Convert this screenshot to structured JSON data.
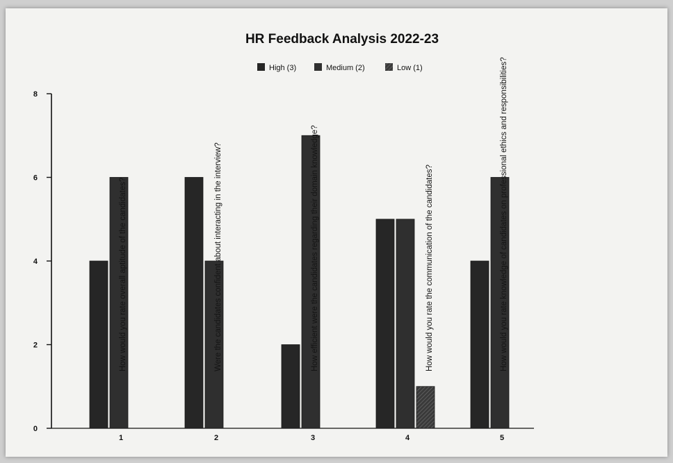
{
  "chart_data": {
    "type": "bar",
    "title": "HR Feedback Analysis 2022-23",
    "legend_placement": "top-center",
    "legend": [
      {
        "label": "High (3)",
        "color": "#262626"
      },
      {
        "label": "Medium (2)",
        "color": "#303030"
      },
      {
        "label": "Low (1)",
        "color": "#3a3a3a"
      }
    ],
    "categories": [
      "1",
      "2",
      "3",
      "4",
      "5"
    ],
    "series": [
      {
        "name": "High (3)",
        "values": [
          4,
          6,
          2,
          5,
          4
        ]
      },
      {
        "name": "Medium (2)",
        "values": [
          6,
          4,
          7,
          5,
          6
        ]
      },
      {
        "name": "Low (1)",
        "values": [
          0,
          0,
          0,
          1,
          0
        ]
      }
    ],
    "questions": [
      "How would you rate overall aptitude of the candidates?",
      "Were the candidates confident about interacting in the interview?",
      "How efficient were the candidates regarding their domain knowledge?",
      "How would you rate the communication of the candidates?",
      "How would you rate knowledge of candidates on professional ethics and responsibilities?"
    ],
    "yticks": [
      0,
      2,
      4,
      6,
      8
    ],
    "ylim": [
      0,
      8
    ],
    "grid": false
  }
}
